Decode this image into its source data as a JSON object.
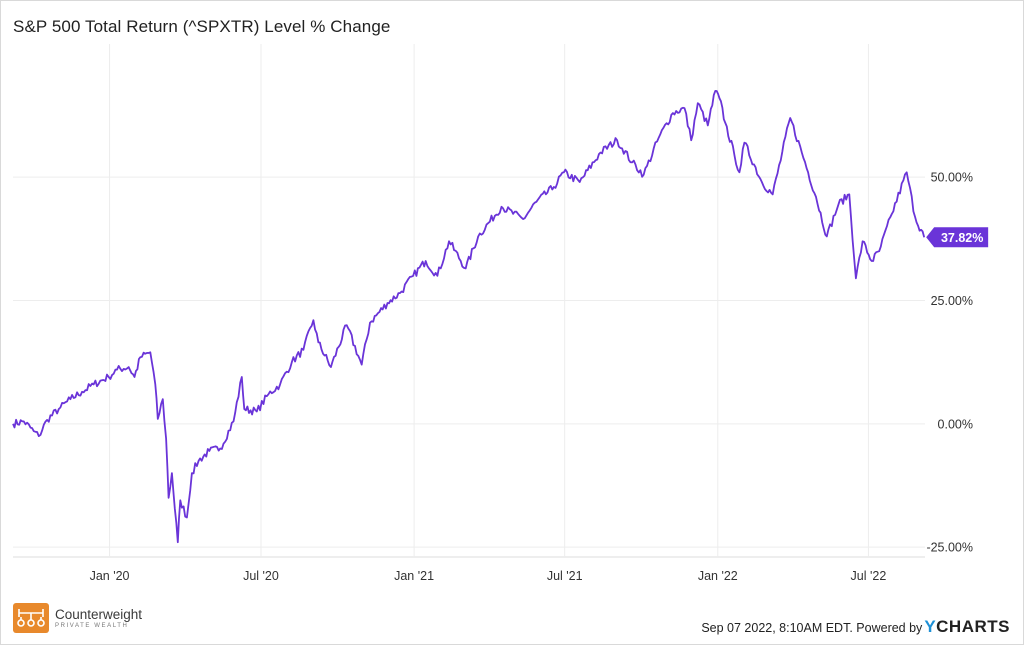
{
  "chart_data": {
    "type": "line",
    "title": "S&P 500 Total Return (^SPXTR) Level % Change",
    "xlabel": "",
    "ylabel": "",
    "x_ticks": [
      "Jan '20",
      "Jul '20",
      "Jan '21",
      "Jul '21",
      "Jan '22",
      "Jul '22"
    ],
    "y_ticks": [
      "-25.00%",
      "0.00%",
      "25.00%",
      "50.00%"
    ],
    "ylim": [
      -27,
      77
    ],
    "grid": true,
    "series": [
      {
        "color": "#6a34d8",
        "last_value_label": "37.82%",
        "points": [
          [
            "2019-09-07",
            0.0
          ],
          [
            "2019-09-20",
            0.5
          ],
          [
            "2019-10-02",
            -1.5
          ],
          [
            "2019-10-08",
            -2.5
          ],
          [
            "2019-10-18",
            0.8
          ],
          [
            "2019-11-01",
            3.0
          ],
          [
            "2019-11-15",
            5.0
          ],
          [
            "2019-11-29",
            6.5
          ],
          [
            "2019-12-13",
            8.0
          ],
          [
            "2019-12-31",
            9.5
          ],
          [
            "2020-01-10",
            11.0
          ],
          [
            "2020-01-24",
            11.5
          ],
          [
            "2020-01-31",
            9.5
          ],
          [
            "2020-02-07",
            13.5
          ],
          [
            "2020-02-19",
            14.5
          ],
          [
            "2020-02-25",
            8.0
          ],
          [
            "2020-02-28",
            1.0
          ],
          [
            "2020-03-05",
            5.0
          ],
          [
            "2020-03-09",
            -3.0
          ],
          [
            "2020-03-12",
            -15.0
          ],
          [
            "2020-03-16",
            -10.0
          ],
          [
            "2020-03-23",
            -24.0
          ],
          [
            "2020-03-26",
            -15.5
          ],
          [
            "2020-04-03",
            -19.0
          ],
          [
            "2020-04-09",
            -10.0
          ],
          [
            "2020-04-17",
            -7.5
          ],
          [
            "2020-04-30",
            -5.5
          ],
          [
            "2020-05-13",
            -5.0
          ],
          [
            "2020-05-29",
            0.5
          ],
          [
            "2020-06-08",
            9.5
          ],
          [
            "2020-06-11",
            3.0
          ],
          [
            "2020-06-26",
            2.5
          ],
          [
            "2020-07-10",
            6.0
          ],
          [
            "2020-07-24",
            8.0
          ],
          [
            "2020-08-07",
            12.5
          ],
          [
            "2020-08-21",
            15.0
          ],
          [
            "2020-09-02",
            21.0
          ],
          [
            "2020-09-08",
            16.5
          ],
          [
            "2020-09-23",
            11.5
          ],
          [
            "2020-10-12",
            20.0
          ],
          [
            "2020-10-30",
            12.0
          ],
          [
            "2020-11-09",
            20.5
          ],
          [
            "2020-11-30",
            24.5
          ],
          [
            "2020-12-15",
            26.5
          ],
          [
            "2020-12-31",
            30.0
          ],
          [
            "2021-01-15",
            33.0
          ],
          [
            "2021-01-29",
            30.0
          ],
          [
            "2021-02-12",
            37.0
          ],
          [
            "2021-03-04",
            31.5
          ],
          [
            "2021-03-19",
            38.0
          ],
          [
            "2021-04-16",
            44.0
          ],
          [
            "2021-05-12",
            41.5
          ],
          [
            "2021-05-28",
            45.0
          ],
          [
            "2021-06-18",
            48.0
          ],
          [
            "2021-06-30",
            51.0
          ],
          [
            "2021-07-19",
            49.0
          ],
          [
            "2021-08-13",
            55.0
          ],
          [
            "2021-09-02",
            57.5
          ],
          [
            "2021-09-20",
            53.0
          ],
          [
            "2021-10-04",
            50.5
          ],
          [
            "2021-10-22",
            58.0
          ],
          [
            "2021-11-08",
            63.0
          ],
          [
            "2021-11-22",
            64.0
          ],
          [
            "2021-11-30",
            57.5
          ],
          [
            "2021-12-08",
            65.0
          ],
          [
            "2021-12-20",
            60.5
          ],
          [
            "2021-12-29",
            67.5
          ],
          [
            "2022-01-03",
            66.0
          ],
          [
            "2022-01-10",
            61.0
          ],
          [
            "2022-01-21",
            54.5
          ],
          [
            "2022-01-27",
            51.0
          ],
          [
            "2022-02-02",
            57.0
          ],
          [
            "2022-02-23",
            49.0
          ],
          [
            "2022-03-08",
            46.5
          ],
          [
            "2022-03-29",
            62.0
          ],
          [
            "2022-04-12",
            55.0
          ],
          [
            "2022-04-29",
            46.0
          ],
          [
            "2022-05-12",
            38.0
          ],
          [
            "2022-05-26",
            44.5
          ],
          [
            "2022-06-08",
            46.5
          ],
          [
            "2022-06-16",
            29.5
          ],
          [
            "2022-06-24",
            37.0
          ],
          [
            "2022-07-05",
            33.0
          ],
          [
            "2022-07-14",
            35.0
          ],
          [
            "2022-07-29",
            42.5
          ],
          [
            "2022-08-16",
            51.0
          ],
          [
            "2022-08-26",
            42.0
          ],
          [
            "2022-09-06",
            37.82
          ]
        ]
      }
    ]
  },
  "footer": {
    "timestamp": "Sep 07 2022, 8:10AM EDT.",
    "powered_by": "Powered by",
    "brand_y": "Y",
    "brand_rest": "CHARTS"
  },
  "logo": {
    "name": "Counterweight",
    "sub": "PRIVATE WEALTH",
    "color": "#e8892c"
  }
}
